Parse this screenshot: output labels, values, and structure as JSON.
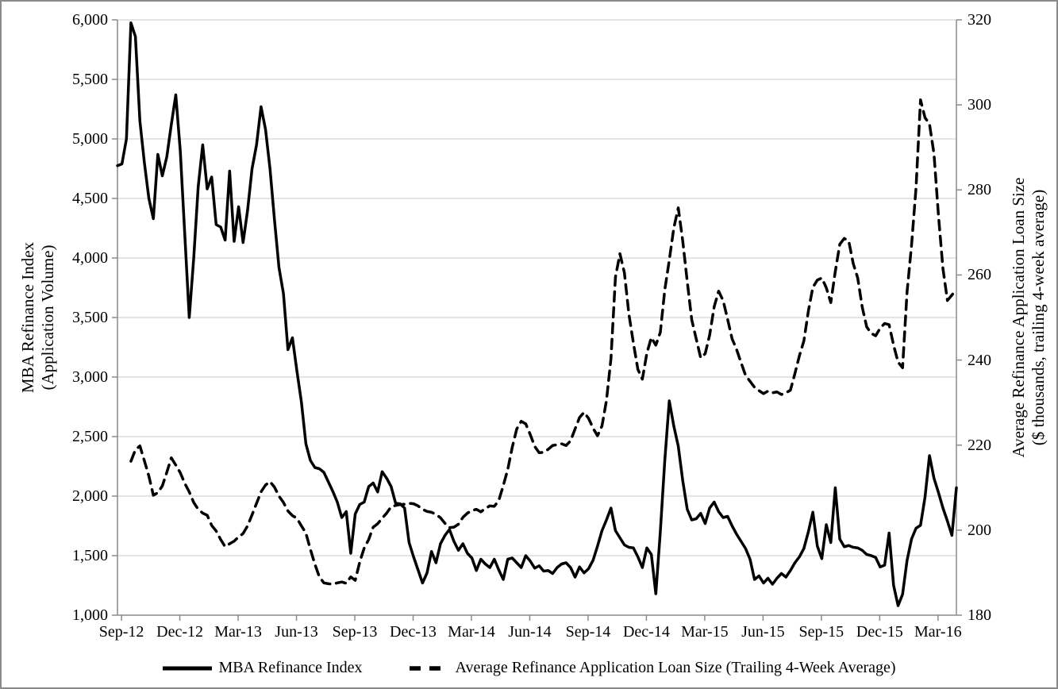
{
  "chart_data": {
    "type": "line",
    "title": "",
    "x_tick_labels": [
      "Sep-12",
      "Dec-12",
      "Mar-13",
      "Jun-13",
      "Sep-13",
      "Dec-13",
      "Mar-14",
      "Jun-14",
      "Sep-14",
      "Dec-14",
      "Mar-15",
      "Jun-15",
      "Sep-15",
      "Dec-15",
      "Mar-16"
    ],
    "x_unit": "weeks",
    "left_axis": {
      "title_line1": "MBA Refinance Index",
      "title_line2": "(Application Volume)",
      "min": 1000,
      "max": 6000,
      "step": 500,
      "tick_labels": [
        "6,000",
        "5,500",
        "5,000",
        "4,500",
        "4,000",
        "3,500",
        "3,000",
        "2,500",
        "2,000",
        "1,500",
        "1,000"
      ]
    },
    "right_axis": {
      "title_line1": "Average Refinance Application Loan Size",
      "title_line2": "($ thousands, trailing 4-week average)",
      "min": 180,
      "max": 320,
      "step": 20,
      "tick_labels": [
        "320",
        "300",
        "280",
        "260",
        "240",
        "220",
        "200",
        "180"
      ]
    },
    "grid": "horizontal",
    "legend_position": "bottom",
    "colors": {
      "series": "#000000",
      "grid": "#c9c9c9",
      "axis": "#8a8a8a",
      "text": "#000000"
    },
    "series": [
      {
        "name": "MBA Refinance Index",
        "axis": "left",
        "style": "solid",
        "values": [
          4775,
          4790,
          5000,
          5975,
          5860,
          5150,
          4800,
          4500,
          4330,
          4870,
          4690,
          4850,
          5120,
          5370,
          4900,
          4200,
          3500,
          4000,
          4600,
          4950,
          4580,
          4680,
          4280,
          4260,
          4150,
          4730,
          4140,
          4430,
          4130,
          4400,
          4750,
          4950,
          5270,
          5080,
          4750,
          4320,
          3920,
          3700,
          3230,
          3330,
          3050,
          2790,
          2440,
          2300,
          2240,
          2230,
          2200,
          2120,
          2040,
          1950,
          1820,
          1870,
          1520,
          1850,
          1930,
          1950,
          2080,
          2110,
          2035,
          2205,
          2150,
          2080,
          1940,
          1935,
          1900,
          1610,
          1490,
          1380,
          1270,
          1355,
          1535,
          1440,
          1600,
          1670,
          1720,
          1620,
          1545,
          1600,
          1520,
          1480,
          1375,
          1470,
          1430,
          1400,
          1470,
          1380,
          1300,
          1470,
          1480,
          1440,
          1400,
          1500,
          1455,
          1395,
          1415,
          1370,
          1375,
          1350,
          1400,
          1430,
          1440,
          1400,
          1320,
          1405,
          1355,
          1390,
          1460,
          1580,
          1710,
          1800,
          1900,
          1710,
          1650,
          1590,
          1570,
          1565,
          1490,
          1400,
          1565,
          1510,
          1180,
          1700,
          2300,
          2800,
          2590,
          2420,
          2130,
          1890,
          1800,
          1810,
          1855,
          1770,
          1900,
          1950,
          1870,
          1820,
          1830,
          1750,
          1680,
          1620,
          1560,
          1470,
          1300,
          1330,
          1270,
          1310,
          1260,
          1310,
          1350,
          1320,
          1375,
          1440,
          1490,
          1560,
          1700,
          1865,
          1580,
          1475,
          1760,
          1610,
          2070,
          1640,
          1575,
          1585,
          1570,
          1565,
          1545,
          1510,
          1500,
          1485,
          1405,
          1420,
          1690,
          1250,
          1080,
          1175,
          1460,
          1640,
          1730,
          1755,
          1990,
          2340,
          2150,
          2030,
          1900,
          1790,
          1670,
          2070
        ]
      },
      {
        "name": "Average Refinance Application Loan Size (Trailing 4-Week Average)",
        "axis": "right",
        "style": "dashed",
        "values": [
          null,
          null,
          null,
          216.2,
          218.9,
          219.8,
          216.3,
          212.7,
          208.2,
          208.8,
          210.4,
          213.6,
          217.0,
          215.3,
          213.5,
          211.0,
          209.0,
          206.5,
          204.9,
          204.0,
          203.5,
          201.1,
          199.8,
          197.8,
          196.1,
          196.8,
          197.4,
          198.4,
          199.2,
          201.0,
          203.6,
          206.3,
          209.0,
          210.6,
          211.4,
          210.1,
          208.0,
          206.5,
          204.5,
          203.4,
          202.8,
          201.0,
          199.3,
          195.5,
          192.0,
          189.0,
          187.6,
          187.4,
          187.3,
          187.6,
          187.8,
          187.5,
          189.0,
          188.2,
          192.5,
          195.8,
          197.8,
          200.7,
          201.5,
          202.8,
          204.0,
          205.5,
          205.8,
          206.0,
          206.1,
          206.3,
          206.2,
          205.7,
          204.9,
          204.4,
          204.2,
          203.7,
          202.9,
          201.6,
          200.6,
          200.7,
          201.4,
          203.0,
          204.0,
          204.6,
          204.9,
          204.3,
          205.1,
          205.7,
          205.6,
          207.0,
          210.5,
          214.3,
          219.5,
          223.8,
          225.6,
          225.0,
          222.5,
          219.7,
          218.2,
          218.3,
          219.0,
          219.9,
          220.1,
          220.3,
          219.9,
          221.0,
          223.8,
          226.5,
          227.7,
          226.3,
          224.0,
          222.2,
          224.5,
          230.5,
          240.3,
          259.5,
          265.0,
          260.5,
          250.8,
          244.0,
          237.8,
          235.5,
          241.6,
          245.3,
          243.5,
          246.5,
          256.5,
          263.5,
          271.0,
          275.8,
          268.0,
          258.5,
          249.5,
          245.0,
          240.5,
          241.5,
          245.9,
          252.5,
          256.2,
          254.0,
          249.6,
          245.0,
          242.5,
          239.4,
          236.4,
          235.0,
          233.6,
          232.8,
          232.1,
          232.7,
          232.3,
          232.5,
          231.9,
          232.3,
          232.9,
          236.8,
          241.0,
          244.5,
          251.5,
          257.1,
          258.8,
          259.3,
          257.0,
          253.5,
          260.8,
          267.2,
          268.6,
          268.0,
          262.7,
          259.3,
          252.5,
          247.8,
          246.3,
          245.7,
          247.5,
          248.6,
          248.3,
          243.5,
          239.5,
          238.2,
          256.0,
          267.0,
          280.5,
          301.2,
          297.0,
          295.5,
          288.5,
          274.0,
          261.5,
          254.0,
          255.3,
          256.5
        ]
      }
    ]
  }
}
